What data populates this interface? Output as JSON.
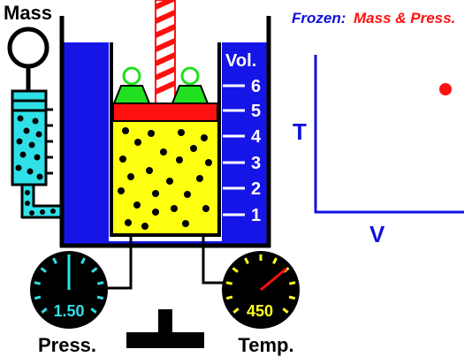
{
  "mass_label": "Mass",
  "header": {
    "frozen_label": "Frozen:",
    "frozen_items": "Mass & Press."
  },
  "volume": {
    "label": "Vol.",
    "ticks": [
      "1",
      "2",
      "3",
      "4",
      "5",
      "6"
    ],
    "current": 5
  },
  "gauges": {
    "pressure": {
      "label": "Press.",
      "value": "1.50",
      "color": "#30e0e8"
    },
    "temperature": {
      "label": "Temp.",
      "value": "450",
      "color": "#ffff20"
    }
  },
  "graph": {
    "y_label": "T",
    "x_label": "V"
  },
  "colors": {
    "water": "#1515e8",
    "gas": "#ffff10",
    "piston": "#ff1010",
    "weight": "#20e020",
    "cyan": "#30e0e8",
    "graph": "#1010e0",
    "point": "#ff1010"
  }
}
